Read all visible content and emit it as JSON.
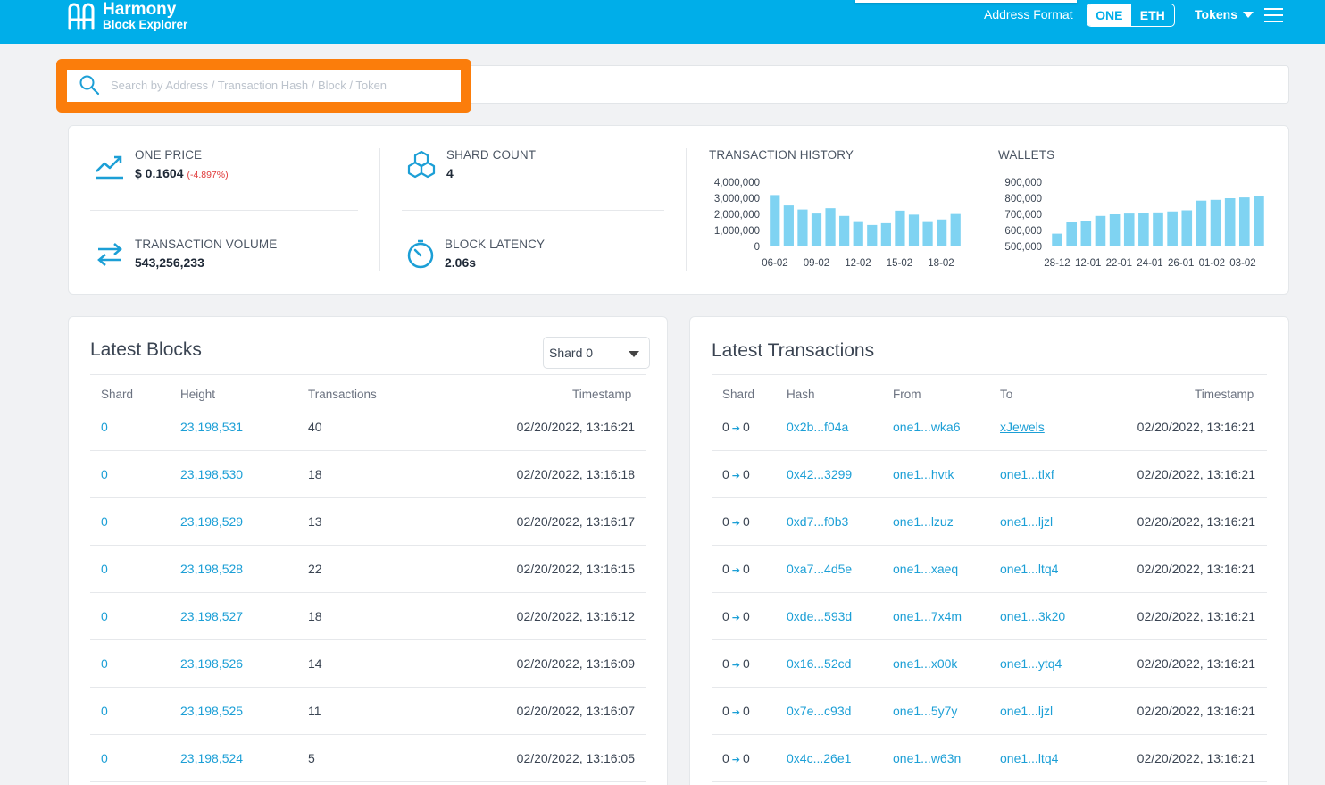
{
  "header": {
    "brand": "Harmony",
    "subtitle": "Block Explorer",
    "address_format_label": "Address Format",
    "format_options": [
      "ONE",
      "ETH"
    ],
    "tokens_label": "Tokens",
    "accent_color": "#00aee9"
  },
  "search": {
    "placeholder": "Search by Address / Transaction Hash / Block / Token",
    "highlight_color": "#fb7d0b"
  },
  "stats": {
    "one_price_label": "ONE PRICE",
    "one_price_value": "$ 0.1604",
    "one_price_change": "(-4.897%)",
    "shard_count_label": "SHARD COUNT",
    "shard_count_value": "4",
    "tx_volume_label": "TRANSACTION VOLUME",
    "tx_volume_value": "543,256,233",
    "block_latency_label": "BLOCK LATENCY",
    "block_latency_value": "2.06s"
  },
  "chart_data": [
    {
      "type": "bar",
      "title": "TRANSACTION HISTORY",
      "x_tick_labels": [
        "06-02",
        "09-02",
        "12-02",
        "15-02",
        "18-02"
      ],
      "y_tick_labels": [
        "4,000,000",
        "3,000,000",
        "2,000,000",
        "1,000,000",
        "0"
      ],
      "ylim": [
        0,
        4000000
      ],
      "values": [
        3200000,
        2550000,
        2300000,
        2050000,
        2380000,
        1900000,
        1520000,
        1340000,
        1450000,
        2230000,
        1980000,
        1520000,
        1680000,
        2020000
      ],
      "color": "#7fd3f2"
    },
    {
      "type": "bar",
      "title": "WALLETS",
      "x_tick_labels": [
        "28-12",
        "12-01",
        "22-01",
        "24-01",
        "26-01",
        "01-02",
        "03-02"
      ],
      "y_tick_labels": [
        "900,000",
        "800,000",
        "700,000",
        "600,000",
        "500,000"
      ],
      "ylim": [
        500000,
        900000
      ],
      "values": [
        580000,
        650000,
        660000,
        690000,
        700000,
        705000,
        708000,
        712000,
        718000,
        725000,
        785000,
        790000,
        800000,
        805000,
        812000
      ],
      "color": "#7fd3f2"
    }
  ],
  "blocks": {
    "title": "Latest Blocks",
    "shard_select": "Shard 0",
    "columns": [
      "Shard",
      "Height",
      "Transactions",
      "Timestamp"
    ],
    "rows": [
      {
        "shard": "0",
        "height": "23,198,531",
        "txs": "40",
        "time": "02/20/2022, 13:16:21"
      },
      {
        "shard": "0",
        "height": "23,198,530",
        "txs": "18",
        "time": "02/20/2022, 13:16:18"
      },
      {
        "shard": "0",
        "height": "23,198,529",
        "txs": "13",
        "time": "02/20/2022, 13:16:17"
      },
      {
        "shard": "0",
        "height": "23,198,528",
        "txs": "22",
        "time": "02/20/2022, 13:16:15"
      },
      {
        "shard": "0",
        "height": "23,198,527",
        "txs": "18",
        "time": "02/20/2022, 13:16:12"
      },
      {
        "shard": "0",
        "height": "23,198,526",
        "txs": "14",
        "time": "02/20/2022, 13:16:09"
      },
      {
        "shard": "0",
        "height": "23,198,525",
        "txs": "11",
        "time": "02/20/2022, 13:16:07"
      },
      {
        "shard": "0",
        "height": "23,198,524",
        "txs": "5",
        "time": "02/20/2022, 13:16:05"
      }
    ]
  },
  "transactions": {
    "title": "Latest Transactions",
    "columns": [
      "Shard",
      "Hash",
      "From",
      "To",
      "Timestamp"
    ],
    "rows": [
      {
        "from_shard": "0",
        "to_shard": "0",
        "hash": "0x2b...f04a",
        "from": "one1...wka6",
        "to": "xJewels",
        "time": "02/20/2022, 13:16:21"
      },
      {
        "from_shard": "0",
        "to_shard": "0",
        "hash": "0x42...3299",
        "from": "one1...hvtk",
        "to": "one1...tlxf",
        "time": "02/20/2022, 13:16:21"
      },
      {
        "from_shard": "0",
        "to_shard": "0",
        "hash": "0xd7...f0b3",
        "from": "one1...lzuz",
        "to": "one1...ljzl",
        "time": "02/20/2022, 13:16:21"
      },
      {
        "from_shard": "0",
        "to_shard": "0",
        "hash": "0xa7...4d5e",
        "from": "one1...xaeq",
        "to": "one1...ltq4",
        "time": "02/20/2022, 13:16:21"
      },
      {
        "from_shard": "0",
        "to_shard": "0",
        "hash": "0xde...593d",
        "from": "one1...7x4m",
        "to": "one1...3k20",
        "time": "02/20/2022, 13:16:21"
      },
      {
        "from_shard": "0",
        "to_shard": "0",
        "hash": "0x16...52cd",
        "from": "one1...x00k",
        "to": "one1...ytq4",
        "time": "02/20/2022, 13:16:21"
      },
      {
        "from_shard": "0",
        "to_shard": "0",
        "hash": "0x7e...c93d",
        "from": "one1...5y7y",
        "to": "one1...ljzl",
        "time": "02/20/2022, 13:16:21"
      },
      {
        "from_shard": "0",
        "to_shard": "0",
        "hash": "0x4c...26e1",
        "from": "one1...w63n",
        "to": "one1...ltq4",
        "time": "02/20/2022, 13:16:21"
      }
    ]
  }
}
